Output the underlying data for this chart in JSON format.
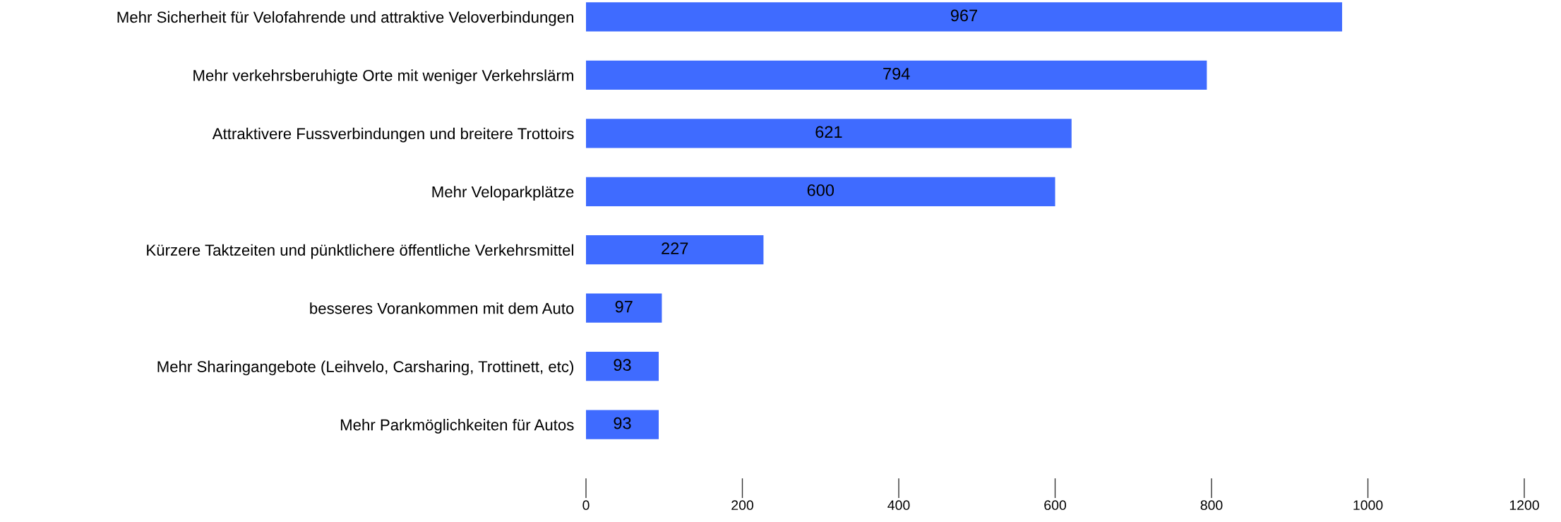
{
  "chart_data": {
    "type": "bar",
    "orientation": "horizontal",
    "categories": [
      "Mehr Sicherheit für Velofahrende und attraktive Veloverbindungen",
      "Mehr verkehrsberuhigte Orte mit weniger Verkehrslärm",
      "Attraktivere Fussverbindungen und breitere Trottoirs",
      "Mehr Veloparkplätze",
      "Kürzere Taktzeiten und pünktlichere öffentliche Verkehrsmittel",
      "besseres Vorankommen mit dem Auto",
      "Mehr Sharingangebote (Leihvelo, Carsharing, Trottinett, etc)",
      "Mehr Parkmöglichkeiten für Autos"
    ],
    "values": [
      967,
      794,
      621,
      600,
      227,
      97,
      93,
      93
    ],
    "color": "#3f6bff",
    "xlim": [
      0,
      1200
    ],
    "xticks": [
      0,
      200,
      400,
      600,
      800,
      1000,
      1200
    ],
    "data_labels": true,
    "grid": false,
    "legend": false
  }
}
